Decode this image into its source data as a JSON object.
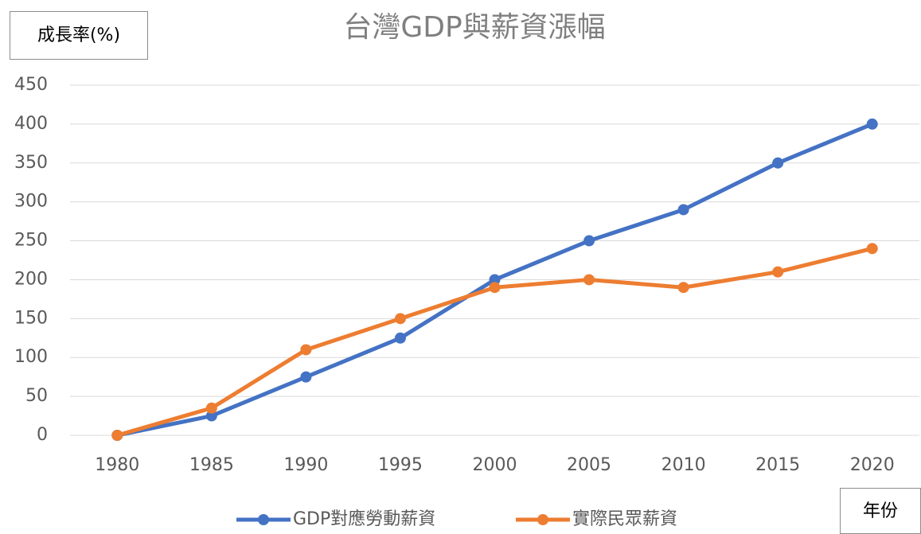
{
  "chart_data": {
    "type": "line",
    "title": "台灣GDP與薪資漲幅",
    "y_label": "成長率(%)",
    "x_label": "年份",
    "categories": [
      "1980",
      "1985",
      "1990",
      "1995",
      "2000",
      "2005",
      "2010",
      "2015",
      "2020"
    ],
    "series": [
      {
        "name": "GDP對應勞動薪資",
        "color": "#4472c4",
        "values": [
          0,
          25,
          75,
          125,
          200,
          250,
          290,
          350,
          400
        ]
      },
      {
        "name": "實際民眾薪資",
        "color": "#ed7d31",
        "values": [
          0,
          35,
          110,
          150,
          190,
          200,
          190,
          210,
          240
        ]
      }
    ],
    "ylim": [
      0,
      450
    ],
    "yticks": [
      0,
      50,
      100,
      150,
      200,
      250,
      300,
      350,
      400,
      450
    ],
    "grid": true,
    "legend": "bottom"
  }
}
